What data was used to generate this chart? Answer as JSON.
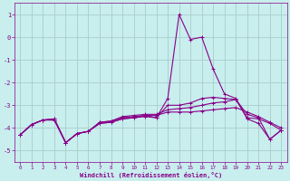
{
  "xlabel": "Windchill (Refroidissement éolien,°C)",
  "bg_color": "#c8eeee",
  "grid_color": "#aadddd",
  "line_color": "#880088",
  "xlim": [
    -0.5,
    23.5
  ],
  "ylim": [
    -5.5,
    1.5
  ],
  "xticks": [
    0,
    1,
    2,
    3,
    4,
    5,
    6,
    7,
    8,
    9,
    10,
    11,
    12,
    13,
    14,
    15,
    16,
    17,
    18,
    19,
    20,
    21,
    22,
    23
  ],
  "yticks": [
    -5,
    -4,
    -3,
    -2,
    -1,
    0,
    1
  ],
  "series": [
    [
      -4.3,
      -3.85,
      -3.65,
      -3.6,
      -4.65,
      -4.25,
      -4.15,
      -3.75,
      -3.7,
      -3.55,
      -3.5,
      -3.45,
      -3.45,
      -3.3,
      -3.3,
      -3.3,
      -3.25,
      -3.2,
      -3.15,
      -3.1,
      -3.3,
      -3.5,
      -3.75,
      -4.0
    ],
    [
      -4.3,
      -3.85,
      -3.65,
      -3.6,
      -4.65,
      -4.25,
      -4.15,
      -3.75,
      -3.7,
      -3.5,
      -3.45,
      -3.4,
      -3.4,
      -3.2,
      -3.15,
      -3.1,
      -3.0,
      -2.9,
      -2.85,
      -2.75,
      -3.55,
      -3.6,
      -3.8,
      -4.1
    ],
    [
      -4.3,
      -3.85,
      -3.65,
      -3.65,
      -4.65,
      -4.25,
      -4.15,
      -3.8,
      -3.75,
      -3.6,
      -3.55,
      -3.45,
      -3.55,
      -2.7,
      1.0,
      -0.1,
      0.0,
      -1.4,
      -2.5,
      -2.7,
      -3.6,
      -3.8,
      -4.5,
      -4.1
    ],
    [
      -4.3,
      -3.85,
      -3.65,
      -3.65,
      -4.65,
      -4.25,
      -4.15,
      -3.8,
      -3.75,
      -3.6,
      -3.55,
      -3.5,
      -3.55,
      -3.0,
      -3.0,
      -2.9,
      -2.7,
      -2.65,
      -2.7,
      -2.75,
      -3.4,
      -3.55,
      -4.5,
      -4.1
    ]
  ]
}
